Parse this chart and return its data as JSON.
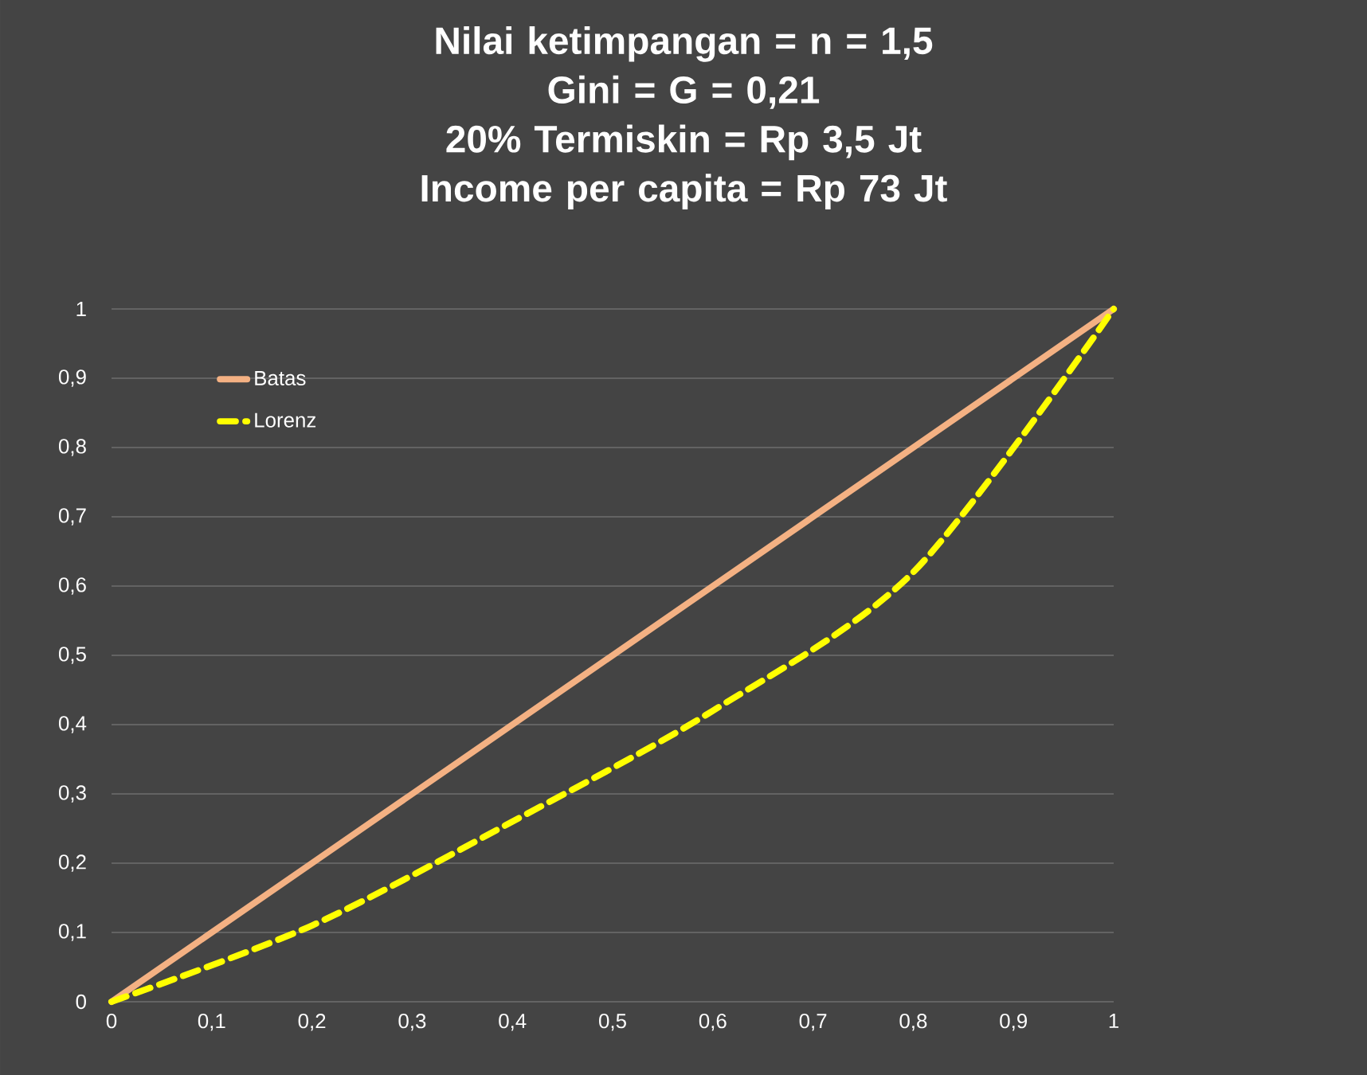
{
  "chart_data": {
    "type": "line",
    "title": "Nilai ketimpangan = n = 1,5\nGini = G = 0,21\n20% Termiskin = Rp 3,5 Jt\nIncome per capita = Rp 73 Jt",
    "x": [
      0,
      0.2,
      0.4,
      0.6,
      0.8,
      1
    ],
    "series": [
      {
        "name": "Batas",
        "color": "#f4b183",
        "values": [
          0,
          0.2,
          0.4,
          0.6,
          0.8,
          1
        ],
        "line_style": "solid"
      },
      {
        "name": "Lorenz",
        "color": "#ffff00",
        "values": [
          0,
          0.11,
          0.26,
          0.42,
          0.62,
          1
        ],
        "line_style": "dashed"
      }
    ],
    "xlim": [
      0,
      1
    ],
    "ylim": [
      0,
      1
    ],
    "xticks": [
      0,
      {
        "value": 0.1,
        "label": "0,1"
      },
      {
        "value": 0.2,
        "label": "0,2"
      },
      {
        "value": 0.3,
        "label": "0,3"
      },
      {
        "value": 0.4,
        "label": "0,4"
      },
      {
        "value": 0.5,
        "label": "0,5"
      },
      {
        "value": 0.6,
        "label": "0,6"
      },
      {
        "value": 0.7,
        "label": "0,7"
      },
      {
        "value": 0.8,
        "label": "0,8"
      },
      {
        "value": 0.9,
        "label": "0,9"
      },
      1
    ],
    "yticks": [
      0,
      {
        "value": 0.1,
        "label": "0,1"
      },
      {
        "value": 0.2,
        "label": "0,2"
      },
      {
        "value": 0.3,
        "label": "0,3"
      },
      {
        "value": 0.4,
        "label": "0,4"
      },
      {
        "value": 0.5,
        "label": "0,5"
      },
      {
        "value": 0.6,
        "label": "0,6"
      },
      {
        "value": 0.7,
        "label": "0,7"
      },
      {
        "value": 0.8,
        "label": "0,8"
      },
      {
        "value": 0.9,
        "label": "0,9"
      },
      1
    ],
    "grid": "y",
    "legend": "top left",
    "marker": "none"
  }
}
